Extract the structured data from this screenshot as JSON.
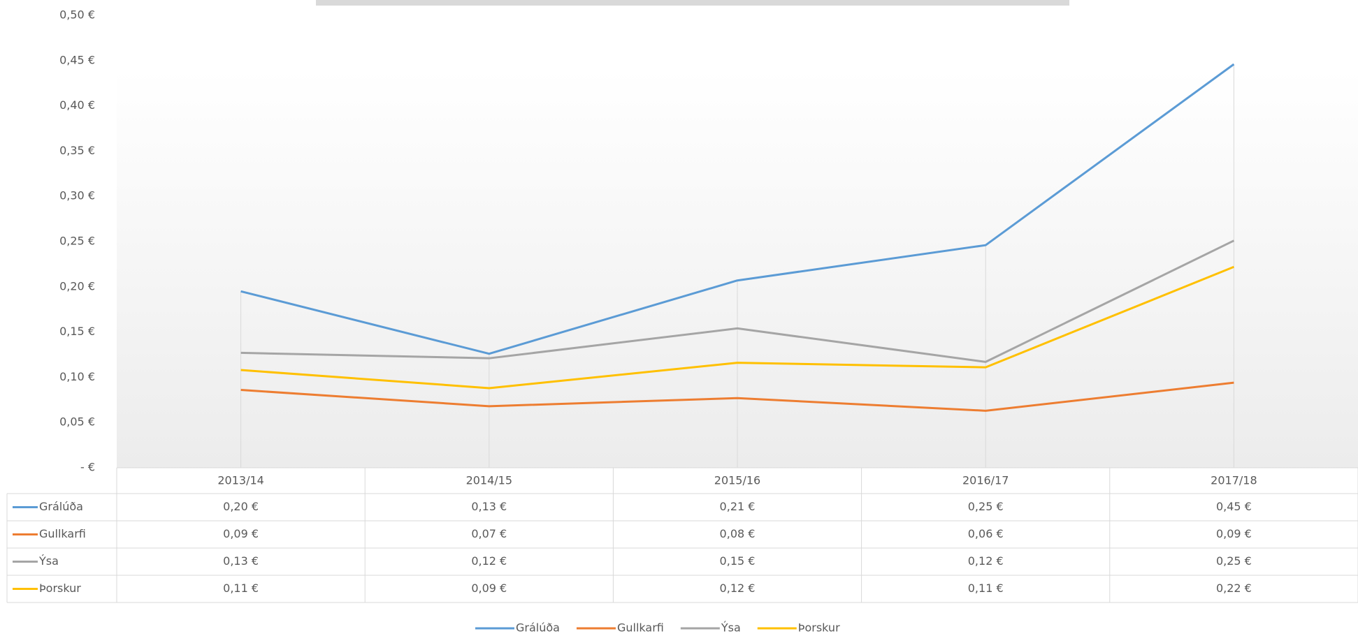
{
  "chart_data": {
    "type": "line",
    "categories": [
      "2013/14",
      "2014/15",
      "2015/16",
      "2016/17",
      "2017/18"
    ],
    "series": [
      {
        "name": "Grálúða",
        "color": "#5b9bd5",
        "values": [
          0.195,
          0.126,
          0.207,
          0.246,
          0.446
        ],
        "value_labels": [
          "0,20 €",
          "0,13 €",
          "0,21 €",
          "0,25 €",
          "0,45 €"
        ]
      },
      {
        "name": "Gullkarfi",
        "color": "#ed7d31",
        "values": [
          0.086,
          0.068,
          0.077,
          0.063,
          0.094
        ],
        "value_labels": [
          "0,09 €",
          "0,07 €",
          "0,08 €",
          "0,06 €",
          "0,09 €"
        ]
      },
      {
        "name": "Ýsa",
        "color": "#a5a5a5",
        "values": [
          0.127,
          0.121,
          0.154,
          0.117,
          0.251
        ],
        "value_labels": [
          "0,13 €",
          "0,12 €",
          "0,15 €",
          "0,12 €",
          "0,25 €"
        ]
      },
      {
        "name": "Þorskur",
        "color": "#ffc000",
        "values": [
          0.108,
          0.088,
          0.116,
          0.111,
          0.222
        ],
        "value_labels": [
          "0,11 €",
          "0,09 €",
          "0,12 €",
          "0,11 €",
          "0,22 €"
        ]
      }
    ],
    "ylim": [
      0,
      0.5
    ],
    "yticks": [
      {
        "value": 0,
        "label": "-  €"
      },
      {
        "value": 0.05,
        "label": "0,05 €"
      },
      {
        "value": 0.1,
        "label": "0,10 €"
      },
      {
        "value": 0.15,
        "label": "0,15 €"
      },
      {
        "value": 0.2,
        "label": "0,20 €"
      },
      {
        "value": 0.25,
        "label": "0,25 €"
      },
      {
        "value": 0.3,
        "label": "0,30 €"
      },
      {
        "value": 0.35,
        "label": "0,35 €"
      },
      {
        "value": 0.4,
        "label": "0,40 €"
      },
      {
        "value": 0.45,
        "label": "0,45 €"
      },
      {
        "value": 0.5,
        "label": "0,50 €"
      }
    ],
    "grid": false,
    "legend": "bottom"
  }
}
